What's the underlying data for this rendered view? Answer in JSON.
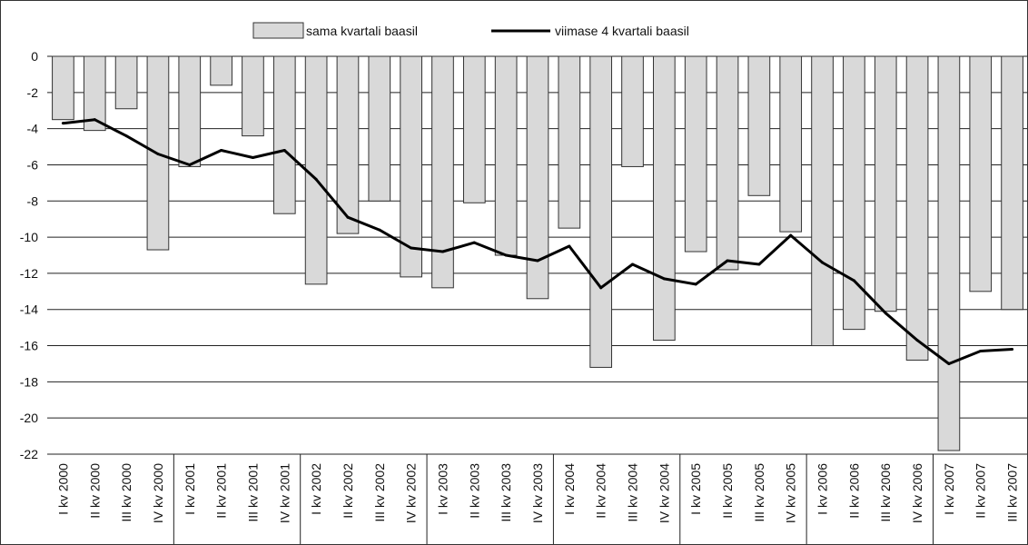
{
  "chart_data": {
    "type": "bar+line",
    "categories": [
      "I kv 2000",
      "II kv 2000",
      "III kv 2000",
      "IV kv 2000",
      "I kv 2001",
      "II kv 2001",
      "III kv 2001",
      "IV kv 2001",
      "I kv 2002",
      "II kv 2002",
      "III kv 2002",
      "IV kv 2002",
      "I kv 2003",
      "II kv 2003",
      "III kv 2003",
      "IV kv 2003",
      "I kv 2004",
      "II kv 2004",
      "III kv 2004",
      "IV kv 2004",
      "I kv 2005",
      "II kv 2005",
      "III kv 2005",
      "IV kv 2005",
      "I kv 2006",
      "II kv 2006",
      "III kv 2006",
      "IV kv 2006",
      "I kv 2007",
      "II kv 2007",
      "III kv 2007"
    ],
    "series": [
      {
        "name": "sama kvartali baasil",
        "type": "bar",
        "color": "#d9d9d9",
        "values": [
          -3.5,
          -4.1,
          -2.9,
          -10.7,
          -6.1,
          -1.6,
          -4.4,
          -8.7,
          -12.6,
          -9.8,
          -8.0,
          -12.2,
          -12.8,
          -8.1,
          -11.0,
          -13.4,
          -9.5,
          -17.2,
          -6.1,
          -15.7,
          -10.8,
          -11.8,
          -7.7,
          -9.7,
          -16.0,
          -15.1,
          -14.1,
          -16.8,
          -21.8,
          -13.0,
          -14.0
        ]
      },
      {
        "name": "viimase 4 kvartali baasil",
        "type": "line",
        "color": "#000000",
        "values": [
          -3.7,
          -3.5,
          -4.4,
          -5.4,
          -6.0,
          -5.2,
          -5.6,
          -5.2,
          -6.8,
          -8.9,
          -9.6,
          -10.6,
          -10.8,
          -10.3,
          -11.0,
          -11.3,
          -10.5,
          -12.8,
          -11.5,
          -12.3,
          -12.6,
          -11.3,
          -11.5,
          -9.9,
          -11.4,
          -12.4,
          -14.2,
          -15.7,
          -17.0,
          -16.3,
          -16.2
        ]
      }
    ],
    "y_ticks": [
      "0",
      "-2",
      "-4",
      "-6",
      "-8",
      "-10",
      "-12",
      "-14",
      "-16",
      "-18",
      "-20",
      "-22"
    ],
    "ylim": [
      -22,
      0
    ],
    "grid": true,
    "legend_position": "top-center"
  }
}
